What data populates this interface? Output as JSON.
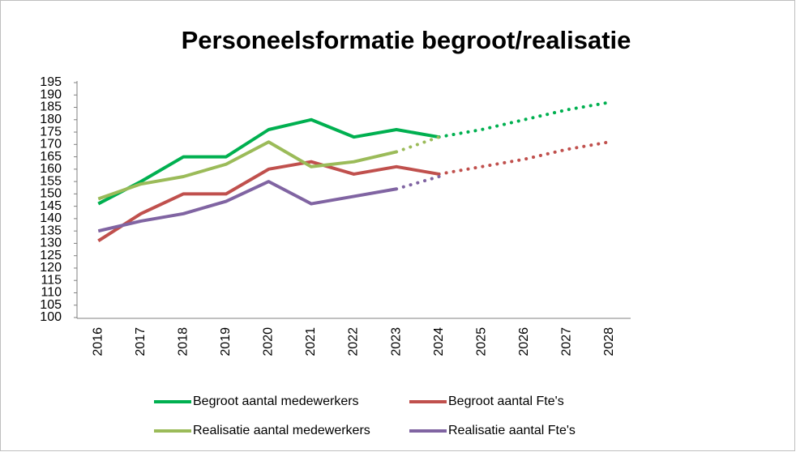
{
  "chart_data": {
    "type": "line",
    "title": "Personeelsformatie begroot/realisatie",
    "categories": [
      "2016",
      "2017",
      "2018",
      "2019",
      "2020",
      "2021",
      "2022",
      "2023",
      "2024",
      "2025",
      "2026",
      "2027",
      "2028"
    ],
    "ylim": [
      100,
      195
    ],
    "yticks": [
      100,
      105,
      110,
      115,
      120,
      125,
      130,
      135,
      140,
      145,
      150,
      155,
      160,
      165,
      170,
      175,
      180,
      185,
      190,
      195
    ],
    "legend": "bottom",
    "series": [
      {
        "name": "Begroot aantal medewerkers",
        "color": "#00b050",
        "dotted_from": "2024",
        "values": [
          146,
          155,
          165,
          165,
          176,
          180,
          173,
          176,
          173,
          176,
          180,
          184,
          187
        ]
      },
      {
        "name": "Begroot aantal Fte's",
        "color": "#c0504d",
        "dotted_from": "2024",
        "values": [
          131,
          142,
          150,
          150,
          160,
          163,
          158,
          161,
          158,
          161,
          164,
          168,
          171
        ]
      },
      {
        "name": "Realisatie aantal medewerkers",
        "color": "#9bbb59",
        "dotted_from": "2023",
        "values": [
          148,
          154,
          157,
          162,
          171,
          161,
          163,
          167,
          173,
          null,
          null,
          null,
          null
        ]
      },
      {
        "name": "Realisatie aantal Fte's",
        "color": "#8064a2",
        "dotted_from": "2023",
        "values": [
          135,
          139,
          142,
          147,
          155,
          146,
          149,
          152,
          157,
          null,
          null,
          null,
          null
        ]
      }
    ]
  }
}
